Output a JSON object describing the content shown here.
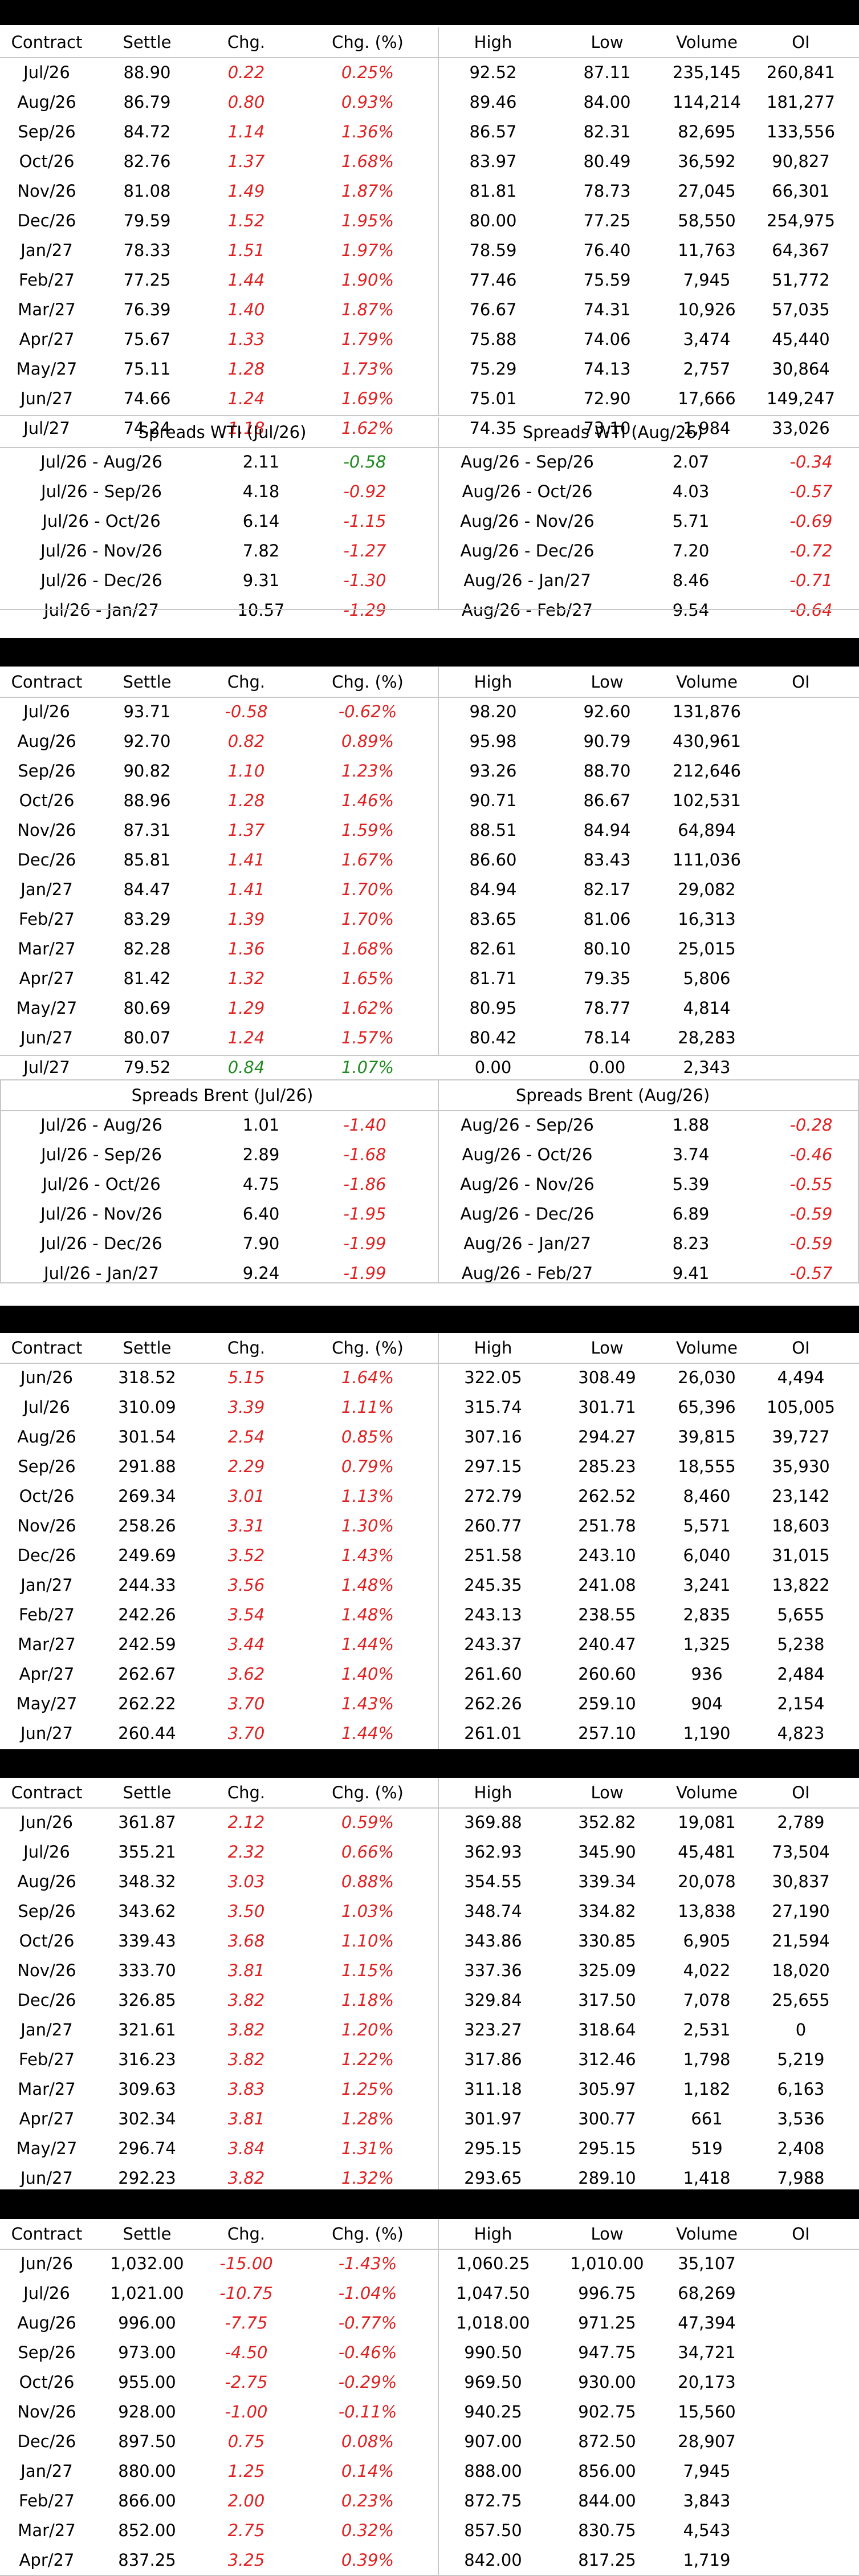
{
  "headers": [
    "Contract",
    "Settle",
    "Chg.",
    "Chg. (%)",
    "High",
    "Low",
    "Volume",
    "OI"
  ],
  "wti": {
    "rows": [
      [
        "Jul/26",
        "88.90",
        "0.22",
        "0.25%",
        "92.52",
        "87.11",
        "235,145",
        "260,841"
      ],
      [
        "Aug/26",
        "86.79",
        "0.80",
        "0.93%",
        "89.46",
        "84.00",
        "114,214",
        "181,277"
      ],
      [
        "Sep/26",
        "84.72",
        "1.14",
        "1.36%",
        "86.57",
        "82.31",
        "82,695",
        "133,556"
      ],
      [
        "Oct/26",
        "82.76",
        "1.37",
        "1.68%",
        "83.97",
        "80.49",
        "36,592",
        "90,827"
      ],
      [
        "Nov/26",
        "81.08",
        "1.49",
        "1.87%",
        "81.81",
        "78.73",
        "27,045",
        "66,301"
      ],
      [
        "Dec/26",
        "79.59",
        "1.52",
        "1.95%",
        "80.00",
        "77.25",
        "58,550",
        "254,975"
      ],
      [
        "Jan/27",
        "78.33",
        "1.51",
        "1.97%",
        "78.59",
        "76.40",
        "11,763",
        "64,367"
      ],
      [
        "Feb/27",
        "77.25",
        "1.44",
        "1.90%",
        "77.46",
        "75.59",
        "7,945",
        "51,772"
      ],
      [
        "Mar/27",
        "76.39",
        "1.40",
        "1.87%",
        "76.67",
        "74.31",
        "10,926",
        "57,035"
      ],
      [
        "Apr/27",
        "75.67",
        "1.33",
        "1.79%",
        "75.88",
        "74.06",
        "3,474",
        "45,440"
      ],
      [
        "May/27",
        "75.11",
        "1.28",
        "1.73%",
        "75.29",
        "74.13",
        "2,757",
        "30,864"
      ],
      [
        "Jun/27",
        "74.66",
        "1.24",
        "1.69%",
        "75.01",
        "72.90",
        "17,666",
        "149,247"
      ],
      [
        "Jul/27",
        "74.24",
        "1.18",
        "1.62%",
        "74.35",
        "73.10",
        "1,984",
        "33,026"
      ]
    ],
    "spreads": {
      "left_title": "Spreads WTI (Jul/26)",
      "right_title": "Spreads WTI (Aug/26)",
      "left": [
        [
          "Jul/26 - Aug/26",
          "2.11",
          "-0.58"
        ],
        [
          "Jul/26 - Sep/26",
          "4.18",
          "-0.92"
        ],
        [
          "Jul/26 - Oct/26",
          "6.14",
          "-1.15"
        ],
        [
          "Jul/26 - Nov/26",
          "7.82",
          "-1.27"
        ],
        [
          "Jul/26 - Dec/26",
          "9.31",
          "-1.30"
        ],
        [
          "Jul/26 - Jan/27",
          "10.57",
          "-1.29"
        ]
      ],
      "right": [
        [
          "Aug/26 - Sep/26",
          "2.07",
          "-0.34"
        ],
        [
          "Aug/26 - Oct/26",
          "4.03",
          "-0.57"
        ],
        [
          "Aug/26 - Nov/26",
          "5.71",
          "-0.69"
        ],
        [
          "Aug/26 - Dec/26",
          "7.20",
          "-0.72"
        ],
        [
          "Aug/26 - Jan/27",
          "8.46",
          "-0.71"
        ],
        [
          "Aug/26 - Feb/27",
          "9.54",
          "-0.64"
        ]
      ]
    }
  },
  "brent": {
    "rows": [
      [
        "Jul/26",
        "93.71",
        "-0.58",
        "-0.62%",
        "98.20",
        "92.60",
        "131,876",
        ""
      ],
      [
        "Aug/26",
        "92.70",
        "0.82",
        "0.89%",
        "95.98",
        "90.79",
        "430,961",
        ""
      ],
      [
        "Sep/26",
        "90.82",
        "1.10",
        "1.23%",
        "93.26",
        "88.70",
        "212,646",
        ""
      ],
      [
        "Oct/26",
        "88.96",
        "1.28",
        "1.46%",
        "90.71",
        "86.67",
        "102,531",
        ""
      ],
      [
        "Nov/26",
        "87.31",
        "1.37",
        "1.59%",
        "88.51",
        "84.94",
        "64,894",
        ""
      ],
      [
        "Dec/26",
        "85.81",
        "1.41",
        "1.67%",
        "86.60",
        "83.43",
        "111,036",
        ""
      ],
      [
        "Jan/27",
        "84.47",
        "1.41",
        "1.70%",
        "84.94",
        "82.17",
        "29,082",
        ""
      ],
      [
        "Feb/27",
        "83.29",
        "1.39",
        "1.70%",
        "83.65",
        "81.06",
        "16,313",
        ""
      ],
      [
        "Mar/27",
        "82.28",
        "1.36",
        "1.68%",
        "82.61",
        "80.10",
        "25,015",
        ""
      ],
      [
        "Apr/27",
        "81.42",
        "1.32",
        "1.65%",
        "81.71",
        "79.35",
        "5,806",
        ""
      ],
      [
        "May/27",
        "80.69",
        "1.29",
        "1.62%",
        "80.95",
        "78.77",
        "4,814",
        ""
      ],
      [
        "Jun/27",
        "80.07",
        "1.24",
        "1.57%",
        "80.42",
        "78.14",
        "28,283",
        ""
      ],
      [
        "Jul/27",
        "79.52",
        "0.84",
        "1.07%",
        "0.00",
        "0.00",
        "2,343",
        ""
      ]
    ],
    "spreads": {
      "left_title": "Spreads Brent (Jul/26)",
      "right_title": "Spreads Brent (Aug/26)",
      "left": [
        [
          "Jul/26 - Aug/26",
          "1.01",
          "-1.40"
        ],
        [
          "Jul/26 - Sep/26",
          "2.89",
          "-1.68"
        ],
        [
          "Jul/26 - Oct/26",
          "4.75",
          "-1.86"
        ],
        [
          "Jul/26 - Nov/26",
          "6.40",
          "-1.95"
        ],
        [
          "Jul/26 - Dec/26",
          "7.90",
          "-1.99"
        ],
        [
          "Jul/26 - Jan/27",
          "9.24",
          "-1.99"
        ]
      ],
      "right": [
        [
          "Aug/26 - Sep/26",
          "1.88",
          "-0.28"
        ],
        [
          "Aug/26 - Oct/26",
          "3.74",
          "-0.46"
        ],
        [
          "Aug/26 - Nov/26",
          "5.39",
          "-0.55"
        ],
        [
          "Aug/26 - Dec/26",
          "6.89",
          "-0.59"
        ],
        [
          "Aug/26 - Jan/27",
          "8.23",
          "-0.59"
        ],
        [
          "Aug/26 - Feb/27",
          "9.41",
          "-0.57"
        ]
      ]
    }
  },
  "table3": [
    [
      "Jun/26",
      "318.52",
      "5.15",
      "1.64%",
      "322.05",
      "308.49",
      "26,030",
      "4,494"
    ],
    [
      "Jul/26",
      "310.09",
      "3.39",
      "1.11%",
      "315.74",
      "301.71",
      "65,396",
      "105,005"
    ],
    [
      "Aug/26",
      "301.54",
      "2.54",
      "0.85%",
      "307.16",
      "294.27",
      "39,815",
      "39,727"
    ],
    [
      "Sep/26",
      "291.88",
      "2.29",
      "0.79%",
      "297.15",
      "285.23",
      "18,555",
      "35,930"
    ],
    [
      "Oct/26",
      "269.34",
      "3.01",
      "1.13%",
      "272.79",
      "262.52",
      "8,460",
      "23,142"
    ],
    [
      "Nov/26",
      "258.26",
      "3.31",
      "1.30%",
      "260.77",
      "251.78",
      "5,571",
      "18,603"
    ],
    [
      "Dec/26",
      "249.69",
      "3.52",
      "1.43%",
      "251.58",
      "243.10",
      "6,040",
      "31,015"
    ],
    [
      "Jan/27",
      "244.33",
      "3.56",
      "1.48%",
      "245.35",
      "241.08",
      "3,241",
      "13,822"
    ],
    [
      "Feb/27",
      "242.26",
      "3.54",
      "1.48%",
      "243.13",
      "238.55",
      "2,835",
      "5,655"
    ],
    [
      "Mar/27",
      "242.59",
      "3.44",
      "1.44%",
      "243.37",
      "240.47",
      "1,325",
      "5,238"
    ],
    [
      "Apr/27",
      "262.67",
      "3.62",
      "1.40%",
      "261.60",
      "260.60",
      "936",
      "2,484"
    ],
    [
      "May/27",
      "262.22",
      "3.70",
      "1.43%",
      "262.26",
      "259.10",
      "904",
      "2,154"
    ],
    [
      "Jun/27",
      "260.44",
      "3.70",
      "1.44%",
      "261.01",
      "257.10",
      "1,190",
      "4,823"
    ]
  ],
  "table4": [
    [
      "Jun/26",
      "361.87",
      "2.12",
      "0.59%",
      "369.88",
      "352.82",
      "19,081",
      "2,789"
    ],
    [
      "Jul/26",
      "355.21",
      "2.32",
      "0.66%",
      "362.93",
      "345.90",
      "45,481",
      "73,504"
    ],
    [
      "Aug/26",
      "348.32",
      "3.03",
      "0.88%",
      "354.55",
      "339.34",
      "20,078",
      "30,837"
    ],
    [
      "Sep/26",
      "343.62",
      "3.50",
      "1.03%",
      "348.74",
      "334.82",
      "13,838",
      "27,190"
    ],
    [
      "Oct/26",
      "339.43",
      "3.68",
      "1.10%",
      "343.86",
      "330.85",
      "6,905",
      "21,594"
    ],
    [
      "Nov/26",
      "333.70",
      "3.81",
      "1.15%",
      "337.36",
      "325.09",
      "4,022",
      "18,020"
    ],
    [
      "Dec/26",
      "326.85",
      "3.82",
      "1.18%",
      "329.84",
      "317.50",
      "7,078",
      "25,655"
    ],
    [
      "Jan/27",
      "321.61",
      "3.82",
      "1.20%",
      "323.27",
      "318.64",
      "2,531",
      "0"
    ],
    [
      "Feb/27",
      "316.23",
      "3.82",
      "1.22%",
      "317.86",
      "312.46",
      "1,798",
      "5,219"
    ],
    [
      "Mar/27",
      "309.63",
      "3.83",
      "1.25%",
      "311.18",
      "305.97",
      "1,182",
      "6,163"
    ],
    [
      "Apr/27",
      "302.34",
      "3.81",
      "1.28%",
      "301.97",
      "300.77",
      "661",
      "3,536"
    ],
    [
      "May/27",
      "296.74",
      "3.84",
      "1.31%",
      "295.15",
      "295.15",
      "519",
      "2,408"
    ],
    [
      "Jun/27",
      "292.23",
      "3.82",
      "1.32%",
      "293.65",
      "289.10",
      "1,418",
      "7,988"
    ]
  ],
  "table5": [
    [
      "Jun/26",
      "1,032.00",
      "-15.00",
      "-1.43%",
      "1,060.25",
      "1,010.00",
      "35,107",
      ""
    ],
    [
      "Jul/26",
      "1,021.00",
      "-10.75",
      "-1.04%",
      "1,047.50",
      "996.75",
      "68,269",
      ""
    ],
    [
      "Aug/26",
      "996.00",
      "-7.75",
      "-0.77%",
      "1,018.00",
      "971.25",
      "47,394",
      ""
    ],
    [
      "Sep/26",
      "973.00",
      "-4.50",
      "-0.46%",
      "990.50",
      "947.75",
      "34,721",
      ""
    ],
    [
      "Oct/26",
      "955.00",
      "-2.75",
      "-0.29%",
      "969.50",
      "930.00",
      "20,173",
      ""
    ],
    [
      "Nov/26",
      "928.00",
      "-1.00",
      "-0.11%",
      "940.25",
      "902.75",
      "15,560",
      ""
    ],
    [
      "Dec/26",
      "897.50",
      "0.75",
      "0.08%",
      "907.00",
      "872.50",
      "28,907",
      ""
    ],
    [
      "Jan/27",
      "880.00",
      "1.25",
      "0.14%",
      "888.00",
      "856.00",
      "7,945",
      ""
    ],
    [
      "Feb/27",
      "866.00",
      "2.00",
      "0.23%",
      "872.75",
      "844.00",
      "3,843",
      ""
    ],
    [
      "Mar/27",
      "852.00",
      "2.75",
      "0.32%",
      "857.50",
      "830.75",
      "4,543",
      ""
    ],
    [
      "Apr/27",
      "837.25",
      "3.25",
      "0.39%",
      "842.00",
      "817.25",
      "1,719",
      ""
    ]
  ],
  "colors": {
    "negative": "#e02020",
    "positive_green": "#1e8a1e",
    "bar": "#000000",
    "grid": "#c8c8c8"
  }
}
